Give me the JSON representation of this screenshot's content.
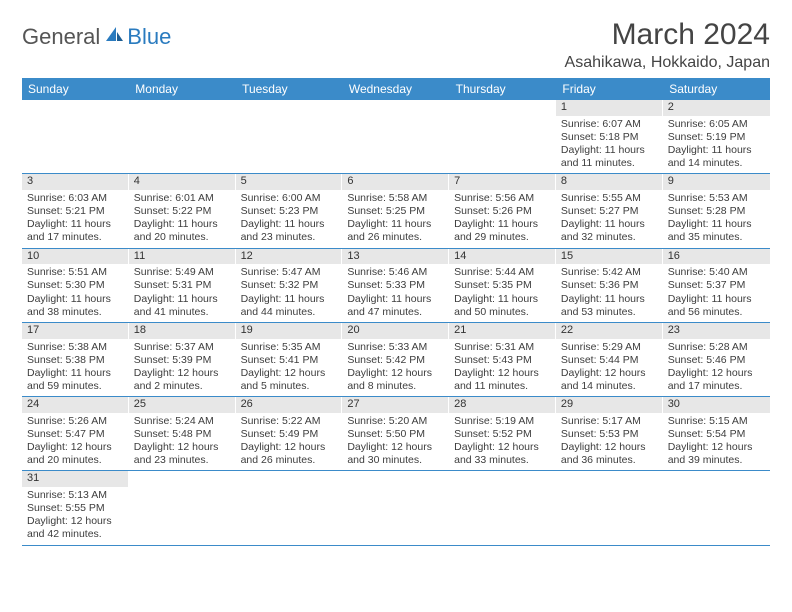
{
  "logo": {
    "text1": "General",
    "text2": "Blue"
  },
  "title": "March 2024",
  "location": "Asahikawa, Hokkaido, Japan",
  "colors": {
    "header_bg": "#3b8bc9",
    "header_text": "#ffffff",
    "daynum_bg": "#e7e7e7",
    "row_border": "#3b8bc9",
    "logo_blue": "#2a7bbf",
    "logo_gray": "#555555",
    "body_text": "#3d3d3d",
    "page_bg": "#ffffff"
  },
  "typography": {
    "title_fontsize": 30,
    "location_fontsize": 16,
    "dayhead_fontsize": 12,
    "cell_fontsize": 10.5,
    "logo_fontsize": 22
  },
  "weekdays": [
    "Sunday",
    "Monday",
    "Tuesday",
    "Wednesday",
    "Thursday",
    "Friday",
    "Saturday"
  ],
  "weeks": [
    [
      {
        "n": "",
        "sr": "",
        "ss": "",
        "dl": ""
      },
      {
        "n": "",
        "sr": "",
        "ss": "",
        "dl": ""
      },
      {
        "n": "",
        "sr": "",
        "ss": "",
        "dl": ""
      },
      {
        "n": "",
        "sr": "",
        "ss": "",
        "dl": ""
      },
      {
        "n": "",
        "sr": "",
        "ss": "",
        "dl": ""
      },
      {
        "n": "1",
        "sr": "Sunrise: 6:07 AM",
        "ss": "Sunset: 5:18 PM",
        "dl": "Daylight: 11 hours and 11 minutes."
      },
      {
        "n": "2",
        "sr": "Sunrise: 6:05 AM",
        "ss": "Sunset: 5:19 PM",
        "dl": "Daylight: 11 hours and 14 minutes."
      }
    ],
    [
      {
        "n": "3",
        "sr": "Sunrise: 6:03 AM",
        "ss": "Sunset: 5:21 PM",
        "dl": "Daylight: 11 hours and 17 minutes."
      },
      {
        "n": "4",
        "sr": "Sunrise: 6:01 AM",
        "ss": "Sunset: 5:22 PM",
        "dl": "Daylight: 11 hours and 20 minutes."
      },
      {
        "n": "5",
        "sr": "Sunrise: 6:00 AM",
        "ss": "Sunset: 5:23 PM",
        "dl": "Daylight: 11 hours and 23 minutes."
      },
      {
        "n": "6",
        "sr": "Sunrise: 5:58 AM",
        "ss": "Sunset: 5:25 PM",
        "dl": "Daylight: 11 hours and 26 minutes."
      },
      {
        "n": "7",
        "sr": "Sunrise: 5:56 AM",
        "ss": "Sunset: 5:26 PM",
        "dl": "Daylight: 11 hours and 29 minutes."
      },
      {
        "n": "8",
        "sr": "Sunrise: 5:55 AM",
        "ss": "Sunset: 5:27 PM",
        "dl": "Daylight: 11 hours and 32 minutes."
      },
      {
        "n": "9",
        "sr": "Sunrise: 5:53 AM",
        "ss": "Sunset: 5:28 PM",
        "dl": "Daylight: 11 hours and 35 minutes."
      }
    ],
    [
      {
        "n": "10",
        "sr": "Sunrise: 5:51 AM",
        "ss": "Sunset: 5:30 PM",
        "dl": "Daylight: 11 hours and 38 minutes."
      },
      {
        "n": "11",
        "sr": "Sunrise: 5:49 AM",
        "ss": "Sunset: 5:31 PM",
        "dl": "Daylight: 11 hours and 41 minutes."
      },
      {
        "n": "12",
        "sr": "Sunrise: 5:47 AM",
        "ss": "Sunset: 5:32 PM",
        "dl": "Daylight: 11 hours and 44 minutes."
      },
      {
        "n": "13",
        "sr": "Sunrise: 5:46 AM",
        "ss": "Sunset: 5:33 PM",
        "dl": "Daylight: 11 hours and 47 minutes."
      },
      {
        "n": "14",
        "sr": "Sunrise: 5:44 AM",
        "ss": "Sunset: 5:35 PM",
        "dl": "Daylight: 11 hours and 50 minutes."
      },
      {
        "n": "15",
        "sr": "Sunrise: 5:42 AM",
        "ss": "Sunset: 5:36 PM",
        "dl": "Daylight: 11 hours and 53 minutes."
      },
      {
        "n": "16",
        "sr": "Sunrise: 5:40 AM",
        "ss": "Sunset: 5:37 PM",
        "dl": "Daylight: 11 hours and 56 minutes."
      }
    ],
    [
      {
        "n": "17",
        "sr": "Sunrise: 5:38 AM",
        "ss": "Sunset: 5:38 PM",
        "dl": "Daylight: 11 hours and 59 minutes."
      },
      {
        "n": "18",
        "sr": "Sunrise: 5:37 AM",
        "ss": "Sunset: 5:39 PM",
        "dl": "Daylight: 12 hours and 2 minutes."
      },
      {
        "n": "19",
        "sr": "Sunrise: 5:35 AM",
        "ss": "Sunset: 5:41 PM",
        "dl": "Daylight: 12 hours and 5 minutes."
      },
      {
        "n": "20",
        "sr": "Sunrise: 5:33 AM",
        "ss": "Sunset: 5:42 PM",
        "dl": "Daylight: 12 hours and 8 minutes."
      },
      {
        "n": "21",
        "sr": "Sunrise: 5:31 AM",
        "ss": "Sunset: 5:43 PM",
        "dl": "Daylight: 12 hours and 11 minutes."
      },
      {
        "n": "22",
        "sr": "Sunrise: 5:29 AM",
        "ss": "Sunset: 5:44 PM",
        "dl": "Daylight: 12 hours and 14 minutes."
      },
      {
        "n": "23",
        "sr": "Sunrise: 5:28 AM",
        "ss": "Sunset: 5:46 PM",
        "dl": "Daylight: 12 hours and 17 minutes."
      }
    ],
    [
      {
        "n": "24",
        "sr": "Sunrise: 5:26 AM",
        "ss": "Sunset: 5:47 PM",
        "dl": "Daylight: 12 hours and 20 minutes."
      },
      {
        "n": "25",
        "sr": "Sunrise: 5:24 AM",
        "ss": "Sunset: 5:48 PM",
        "dl": "Daylight: 12 hours and 23 minutes."
      },
      {
        "n": "26",
        "sr": "Sunrise: 5:22 AM",
        "ss": "Sunset: 5:49 PM",
        "dl": "Daylight: 12 hours and 26 minutes."
      },
      {
        "n": "27",
        "sr": "Sunrise: 5:20 AM",
        "ss": "Sunset: 5:50 PM",
        "dl": "Daylight: 12 hours and 30 minutes."
      },
      {
        "n": "28",
        "sr": "Sunrise: 5:19 AM",
        "ss": "Sunset: 5:52 PM",
        "dl": "Daylight: 12 hours and 33 minutes."
      },
      {
        "n": "29",
        "sr": "Sunrise: 5:17 AM",
        "ss": "Sunset: 5:53 PM",
        "dl": "Daylight: 12 hours and 36 minutes."
      },
      {
        "n": "30",
        "sr": "Sunrise: 5:15 AM",
        "ss": "Sunset: 5:54 PM",
        "dl": "Daylight: 12 hours and 39 minutes."
      }
    ],
    [
      {
        "n": "31",
        "sr": "Sunrise: 5:13 AM",
        "ss": "Sunset: 5:55 PM",
        "dl": "Daylight: 12 hours and 42 minutes."
      },
      {
        "n": "",
        "sr": "",
        "ss": "",
        "dl": ""
      },
      {
        "n": "",
        "sr": "",
        "ss": "",
        "dl": ""
      },
      {
        "n": "",
        "sr": "",
        "ss": "",
        "dl": ""
      },
      {
        "n": "",
        "sr": "",
        "ss": "",
        "dl": ""
      },
      {
        "n": "",
        "sr": "",
        "ss": "",
        "dl": ""
      },
      {
        "n": "",
        "sr": "",
        "ss": "",
        "dl": ""
      }
    ]
  ]
}
